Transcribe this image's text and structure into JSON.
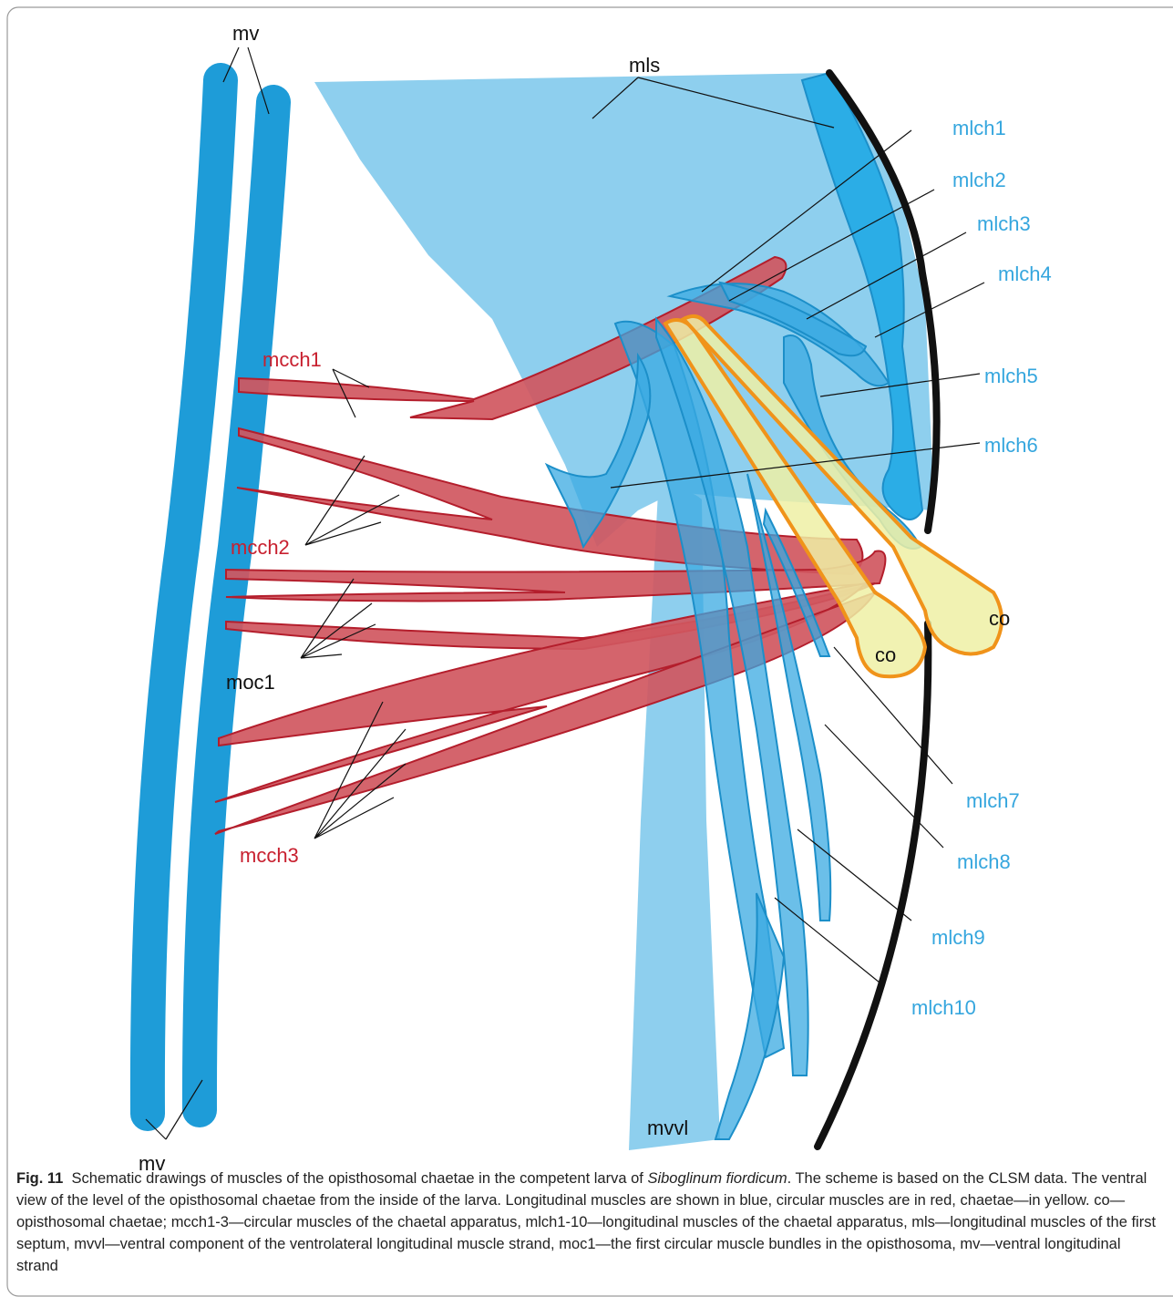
{
  "labels": {
    "mv_top": "mv",
    "mls": "mls",
    "mlch1": "mlch1",
    "mlch2": "mlch2",
    "mlch3": "mlch3",
    "mlch4": "mlch4",
    "mlch5": "mlch5",
    "mlch6": "mlch6",
    "mlch7": "mlch7",
    "mlch8": "mlch8",
    "mlch9": "mlch9",
    "mlch10": "mlch10",
    "mcch1": "mcch1",
    "mcch2": "mcch2",
    "moc1": "moc1",
    "mcch3": "mcch3",
    "co_right": "co",
    "co_left": "co",
    "mvvl": "mvvl",
    "mv_bottom": "mv"
  },
  "caption": {
    "figure": "Fig. 11",
    "text_before": "Schematic drawings of muscles of the opisthosomal chaetae in the competent larva of ",
    "species": "Siboglinum fiordicum",
    "text_after": ". The scheme is based on the CLSM data. The ventral view of the level of the opisthosomal chaetae from the inside of the larva. Longitudinal muscles are shown in blue, circular muscles are in red, chaetae—in yellow. co—opisthosomal chaetae; mcch1-3—circular muscles of the chaetal apparatus, mlch1-10—longitudinal muscles of the chaetal apparatus, mls—longitudinal muscles of the first septum, mvvl—ventral component of the ventrolateral longitudinal muscle strand, moc1—the first circular muscle bundles in the opisthosoma, mv—ventral longitudinal strand"
  }
}
